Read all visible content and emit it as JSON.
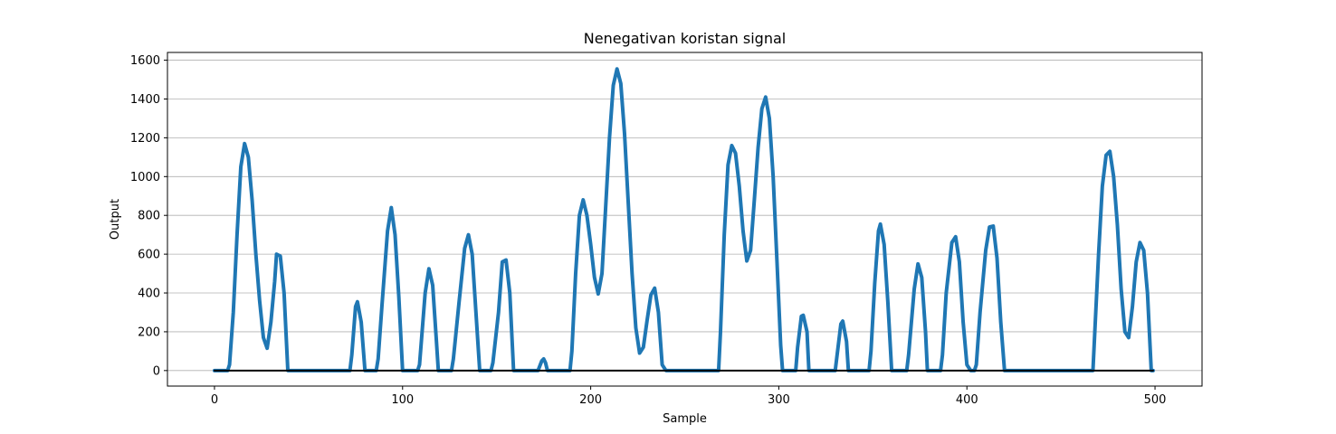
{
  "chart_data": {
    "type": "line",
    "title": "Nenegativan koristan signal",
    "xlabel": "Sample",
    "ylabel": "Output",
    "xlim": [
      -25,
      525
    ],
    "ylim": [
      -80,
      1640
    ],
    "xticks": [
      0,
      100,
      200,
      300,
      400,
      500
    ],
    "yticks": [
      0,
      200,
      400,
      600,
      800,
      1000,
      1200,
      1400,
      1600
    ],
    "grid": "y",
    "series": [
      {
        "color": "#1f77b4",
        "points": [
          [
            0,
            0
          ],
          [
            7,
            0
          ],
          [
            8,
            30
          ],
          [
            10,
            300
          ],
          [
            12,
            700
          ],
          [
            14,
            1050
          ],
          [
            16,
            1170
          ],
          [
            18,
            1100
          ],
          [
            20,
            880
          ],
          [
            22,
            600
          ],
          [
            24,
            360
          ],
          [
            26,
            170
          ],
          [
            28,
            115
          ],
          [
            30,
            250
          ],
          [
            32,
            460
          ],
          [
            33,
            600
          ],
          [
            35,
            590
          ],
          [
            37,
            400
          ],
          [
            39,
            0
          ],
          [
            72,
            0
          ],
          [
            73,
            80
          ],
          [
            75,
            330
          ],
          [
            76,
            355
          ],
          [
            78,
            250
          ],
          [
            80,
            0
          ],
          [
            86,
            0
          ],
          [
            87,
            60
          ],
          [
            89,
            330
          ],
          [
            92,
            720
          ],
          [
            94,
            840
          ],
          [
            96,
            700
          ],
          [
            98,
            380
          ],
          [
            100,
            0
          ],
          [
            108,
            0
          ],
          [
            109,
            30
          ],
          [
            112,
            400
          ],
          [
            114,
            525
          ],
          [
            116,
            440
          ],
          [
            118,
            150
          ],
          [
            119,
            0
          ],
          [
            126,
            0
          ],
          [
            127,
            60
          ],
          [
            130,
            350
          ],
          [
            133,
            630
          ],
          [
            135,
            700
          ],
          [
            137,
            600
          ],
          [
            139,
            300
          ],
          [
            141,
            0
          ],
          [
            147,
            0
          ],
          [
            148,
            40
          ],
          [
            151,
            300
          ],
          [
            153,
            560
          ],
          [
            155,
            570
          ],
          [
            157,
            400
          ],
          [
            159,
            0
          ],
          [
            172,
            0
          ],
          [
            174,
            50
          ],
          [
            175,
            60
          ],
          [
            176,
            40
          ],
          [
            177,
            0
          ],
          [
            189,
            0
          ],
          [
            190,
            100
          ],
          [
            192,
            500
          ],
          [
            194,
            800
          ],
          [
            196,
            880
          ],
          [
            198,
            800
          ],
          [
            200,
            650
          ],
          [
            202,
            480
          ],
          [
            204,
            395
          ],
          [
            206,
            500
          ],
          [
            208,
            850
          ],
          [
            210,
            1200
          ],
          [
            212,
            1470
          ],
          [
            214,
            1555
          ],
          [
            216,
            1480
          ],
          [
            218,
            1220
          ],
          [
            220,
            860
          ],
          [
            222,
            500
          ],
          [
            224,
            220
          ],
          [
            226,
            90
          ],
          [
            228,
            120
          ],
          [
            230,
            260
          ],
          [
            232,
            390
          ],
          [
            234,
            425
          ],
          [
            236,
            300
          ],
          [
            238,
            30
          ],
          [
            240,
            0
          ],
          [
            268,
            0
          ],
          [
            269,
            200
          ],
          [
            271,
            700
          ],
          [
            273,
            1060
          ],
          [
            275,
            1160
          ],
          [
            277,
            1120
          ],
          [
            279,
            950
          ],
          [
            281,
            720
          ],
          [
            283,
            565
          ],
          [
            285,
            620
          ],
          [
            287,
            880
          ],
          [
            289,
            1150
          ],
          [
            291,
            1350
          ],
          [
            293,
            1410
          ],
          [
            295,
            1300
          ],
          [
            297,
            1000
          ],
          [
            299,
            570
          ],
          [
            301,
            130
          ],
          [
            302,
            0
          ],
          [
            309,
            0
          ],
          [
            310,
            120
          ],
          [
            312,
            280
          ],
          [
            313,
            285
          ],
          [
            315,
            200
          ],
          [
            316,
            0
          ],
          [
            330,
            0
          ],
          [
            331,
            80
          ],
          [
            333,
            240
          ],
          [
            334,
            255
          ],
          [
            336,
            150
          ],
          [
            337,
            0
          ],
          [
            348,
            0
          ],
          [
            349,
            100
          ],
          [
            351,
            450
          ],
          [
            353,
            720
          ],
          [
            354,
            755
          ],
          [
            356,
            650
          ],
          [
            358,
            350
          ],
          [
            360,
            0
          ],
          [
            368,
            0
          ],
          [
            369,
            80
          ],
          [
            372,
            420
          ],
          [
            374,
            550
          ],
          [
            376,
            480
          ],
          [
            378,
            200
          ],
          [
            379,
            0
          ],
          [
            386,
            0
          ],
          [
            387,
            80
          ],
          [
            389,
            400
          ],
          [
            392,
            660
          ],
          [
            394,
            690
          ],
          [
            396,
            560
          ],
          [
            398,
            250
          ],
          [
            400,
            30
          ],
          [
            402,
            0
          ],
          [
            404,
            0
          ],
          [
            405,
            30
          ],
          [
            407,
            300
          ],
          [
            410,
            620
          ],
          [
            412,
            740
          ],
          [
            414,
            745
          ],
          [
            416,
            580
          ],
          [
            418,
            250
          ],
          [
            420,
            0
          ],
          [
            467,
            0
          ],
          [
            468,
            200
          ],
          [
            470,
            600
          ],
          [
            472,
            950
          ],
          [
            474,
            1110
          ],
          [
            476,
            1130
          ],
          [
            478,
            1000
          ],
          [
            480,
            750
          ],
          [
            482,
            420
          ],
          [
            484,
            200
          ],
          [
            486,
            170
          ],
          [
            488,
            330
          ],
          [
            490,
            560
          ],
          [
            492,
            660
          ],
          [
            494,
            620
          ],
          [
            496,
            400
          ],
          [
            498,
            0
          ],
          [
            499,
            0
          ]
        ]
      },
      {
        "color": "#000000",
        "points": [
          [
            0,
            0
          ],
          [
            499,
            0
          ]
        ]
      }
    ]
  }
}
